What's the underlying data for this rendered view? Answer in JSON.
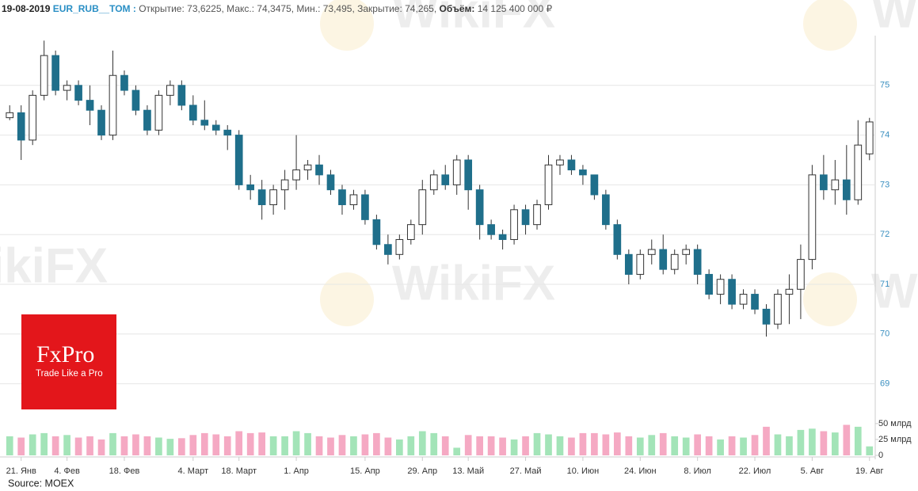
{
  "header": {
    "date": "19-08-2019",
    "ticker": "EUR_RUB__TOM :",
    "ohlc": "Открытие: 73,6225, Макс.: 74,3475, Мин.: 73,495, Закрытие: 74,265,",
    "volume_label": "Объём:",
    "volume_value": "14 125 400 000 ₽"
  },
  "logo": {
    "name": "FxPro",
    "slogan": "Trade Like a Pro"
  },
  "watermark": "WikiFX",
  "source": "Source: MOEX",
  "chart_data": {
    "type": "candlestick",
    "categories": [
      null,
      "21. Янв",
      null,
      null,
      null,
      "4. Фев",
      null,
      null,
      null,
      null,
      "18. Фев",
      null,
      null,
      null,
      null,
      null,
      "4. Март",
      null,
      null,
      null,
      "18. Март",
      null,
      null,
      null,
      null,
      "1. Апр",
      null,
      null,
      null,
      null,
      null,
      "15. Апр",
      null,
      null,
      null,
      null,
      "29. Апр",
      null,
      null,
      null,
      "13. Май",
      null,
      null,
      null,
      null,
      "27. Май",
      null,
      null,
      null,
      null,
      "10. Июн",
      null,
      null,
      null,
      null,
      "24. Июн",
      null,
      null,
      null,
      null,
      "8. Июл",
      null,
      null,
      null,
      null,
      "22. Июл",
      null,
      null,
      null,
      null,
      "5. Авг",
      null,
      null,
      null,
      null,
      "19. Авг"
    ],
    "open": [
      74.35,
      74.45,
      73.9,
      74.8,
      75.6,
      74.9,
      75.0,
      74.7,
      74.5,
      74.0,
      75.2,
      74.9,
      74.5,
      74.1,
      74.8,
      75.0,
      74.6,
      74.3,
      74.2,
      74.1,
      74.0,
      73.0,
      72.9,
      72.6,
      72.9,
      73.1,
      73.3,
      73.4,
      73.2,
      72.9,
      72.6,
      72.8,
      72.3,
      71.8,
      71.6,
      71.9,
      72.2,
      72.9,
      73.2,
      73.0,
      73.5,
      72.9,
      72.2,
      72.0,
      71.9,
      72.5,
      72.2,
      72.6,
      73.4,
      73.5,
      73.3,
      73.2,
      72.8,
      72.2,
      71.6,
      71.2,
      71.6,
      71.7,
      71.3,
      71.6,
      71.7,
      71.2,
      70.8,
      71.1,
      70.6,
      70.8,
      70.5,
      70.2,
      70.8,
      70.9,
      71.5,
      73.2,
      72.9,
      73.1,
      72.7,
      73.6225
    ],
    "high": [
      74.6,
      74.6,
      74.9,
      75.9,
      75.7,
      75.1,
      75.1,
      75.0,
      74.6,
      75.7,
      75.3,
      75.0,
      74.6,
      74.9,
      75.1,
      75.1,
      74.8,
      74.7,
      74.3,
      74.2,
      74.1,
      73.2,
      73.1,
      73.0,
      73.3,
      74.0,
      73.5,
      73.6,
      73.3,
      73.0,
      72.9,
      72.9,
      72.4,
      72.0,
      72.0,
      72.3,
      73.1,
      73.3,
      73.4,
      73.6,
      73.6,
      73.0,
      72.3,
      72.1,
      72.6,
      72.6,
      72.7,
      73.6,
      73.6,
      73.6,
      73.4,
      73.2,
      72.9,
      72.3,
      71.7,
      71.7,
      71.9,
      72.0,
      71.7,
      71.8,
      71.8,
      71.3,
      71.2,
      71.2,
      70.9,
      70.9,
      70.6,
      70.9,
      71.2,
      71.8,
      73.4,
      73.6,
      73.5,
      73.8,
      74.3,
      74.3475
    ],
    "low": [
      74.3,
      73.5,
      73.8,
      74.7,
      74.8,
      74.7,
      74.6,
      74.2,
      73.9,
      73.9,
      74.8,
      74.4,
      74.0,
      74.0,
      74.6,
      74.5,
      74.2,
      74.1,
      74.0,
      73.7,
      72.9,
      72.7,
      72.3,
      72.4,
      72.5,
      72.9,
      73.1,
      73.0,
      72.8,
      72.4,
      72.5,
      72.2,
      71.7,
      71.4,
      71.5,
      71.8,
      72.0,
      72.8,
      72.9,
      72.8,
      72.5,
      71.9,
      71.9,
      71.7,
      71.8,
      72.0,
      72.1,
      72.5,
      73.2,
      73.2,
      73.0,
      72.7,
      72.1,
      71.5,
      71.0,
      71.1,
      71.4,
      71.2,
      71.2,
      71.4,
      71.0,
      70.7,
      70.6,
      70.5,
      70.5,
      70.4,
      69.95,
      70.1,
      70.2,
      70.3,
      71.3,
      72.7,
      72.6,
      72.4,
      72.6,
      73.495
    ],
    "close": [
      74.45,
      73.9,
      74.8,
      75.6,
      74.9,
      75.0,
      74.7,
      74.5,
      74.0,
      75.2,
      74.9,
      74.5,
      74.1,
      74.8,
      75.0,
      74.6,
      74.3,
      74.2,
      74.1,
      74.0,
      73.0,
      72.9,
      72.6,
      72.9,
      73.1,
      73.3,
      73.4,
      73.2,
      72.9,
      72.6,
      72.8,
      72.3,
      71.8,
      71.6,
      71.9,
      72.2,
      72.9,
      73.2,
      73.0,
      73.5,
      72.9,
      72.2,
      72.0,
      71.9,
      72.5,
      72.2,
      72.6,
      73.4,
      73.5,
      73.3,
      73.2,
      72.8,
      72.2,
      71.6,
      71.2,
      71.6,
      71.7,
      71.3,
      71.6,
      71.7,
      71.2,
      70.8,
      71.1,
      70.6,
      70.8,
      70.5,
      70.2,
      70.8,
      70.9,
      71.5,
      73.2,
      72.9,
      73.1,
      72.7,
      73.8,
      74.265
    ],
    "volume": [
      30,
      28,
      33,
      35,
      30,
      32,
      28,
      30,
      25,
      35,
      30,
      33,
      30,
      28,
      26,
      27,
      32,
      35,
      33,
      30,
      38,
      35,
      36,
      30,
      30,
      38,
      35,
      30,
      28,
      32,
      30,
      33,
      35,
      28,
      25,
      30,
      38,
      35,
      30,
      12,
      32,
      30,
      30,
      28,
      25,
      30,
      35,
      33,
      30,
      28,
      35,
      35,
      33,
      36,
      30,
      28,
      32,
      35,
      30,
      28,
      33,
      30,
      25,
      30,
      28,
      32,
      45,
      33,
      30,
      40,
      42,
      38,
      36,
      48,
      45,
      14.1254
    ],
    "up_color": "#ffffff",
    "down_color": "#1f6f8b",
    "volume_up_color": "#a3e4b8",
    "volume_down_color": "#f5a9c3",
    "ylim": [
      68.5,
      76
    ],
    "yticks": [
      69,
      70,
      71,
      72,
      73,
      74,
      75
    ],
    "volume_ylim": [
      0,
      71
    ],
    "volume_ticks": [
      {
        "value": 50,
        "label": "50 млрд"
      },
      {
        "value": 25,
        "label": "25 млрд"
      },
      0
    ],
    "grid": true
  }
}
